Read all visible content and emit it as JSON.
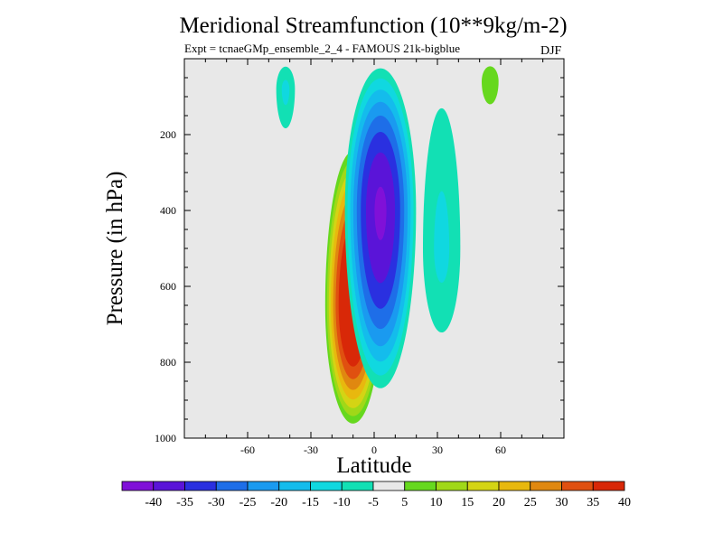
{
  "chart_data": {
    "type": "contour",
    "title": "Meridional Streamfunction (10**9kg/m-2)",
    "subtitle": "Expt = tcnaeGMp_ensemble_2_4 - FAMOUS 21k-bigblue",
    "season": "DJF",
    "xlabel": "Latitude",
    "ylabel": "Pressure (in hPa)",
    "xlim": [
      -90,
      90
    ],
    "ylim": [
      1000,
      0
    ],
    "x_ticks": [
      -60,
      -30,
      0,
      30,
      60
    ],
    "y_ticks": [
      200,
      400,
      600,
      800,
      1000
    ],
    "background_color": "#e8e8e8",
    "levels": [
      -40,
      -35,
      -30,
      -25,
      -20,
      -15,
      -10,
      -5,
      5,
      10,
      15,
      20,
      25,
      30,
      35,
      40
    ],
    "level_labels": [
      "-40",
      "-35",
      "-30",
      "-25",
      "-20",
      "-15",
      "-10",
      "-5",
      "5",
      "10",
      "15",
      "20",
      "25",
      "30",
      "35",
      "40"
    ],
    "colorbar_colors": [
      "#8010d8",
      "#5a14d8",
      "#2a30e0",
      "#1e6ee8",
      "#1a9af0",
      "#14bcec",
      "#10d8e0",
      "#12e0b4",
      "#e8e8e8",
      "#66d81e",
      "#a0d818",
      "#d4d414",
      "#e8b80e",
      "#e08810",
      "#e05010",
      "#d82808"
    ],
    "cells": [
      {
        "name": "southern-positive-cell",
        "center_lat": -10,
        "center_p": 650,
        "lat_halfwidth": 14,
        "p_top": 220,
        "p_bottom": 980,
        "peak": 45
      },
      {
        "name": "northern-negative-cell",
        "center_lat": 3,
        "center_p": 400,
        "lat_halfwidth": 18,
        "p_top": 0,
        "p_bottom": 900,
        "peak": -40
      },
      {
        "name": "northern-weak-negative-cell",
        "center_lat": 32,
        "center_p": 500,
        "lat_halfwidth": 12,
        "p_top": 0,
        "p_bottom": 800,
        "peak": -10
      },
      {
        "name": "southern-weak-negative-cell",
        "center_lat": -42,
        "center_p": 80,
        "lat_halfwidth": 6,
        "p_top": 0,
        "p_bottom": 220,
        "peak": -10
      },
      {
        "name": "northern-weak-positive-cell",
        "center_lat": 55,
        "center_p": 60,
        "lat_halfwidth": 6,
        "p_top": 0,
        "p_bottom": 150,
        "peak": 8
      }
    ]
  }
}
